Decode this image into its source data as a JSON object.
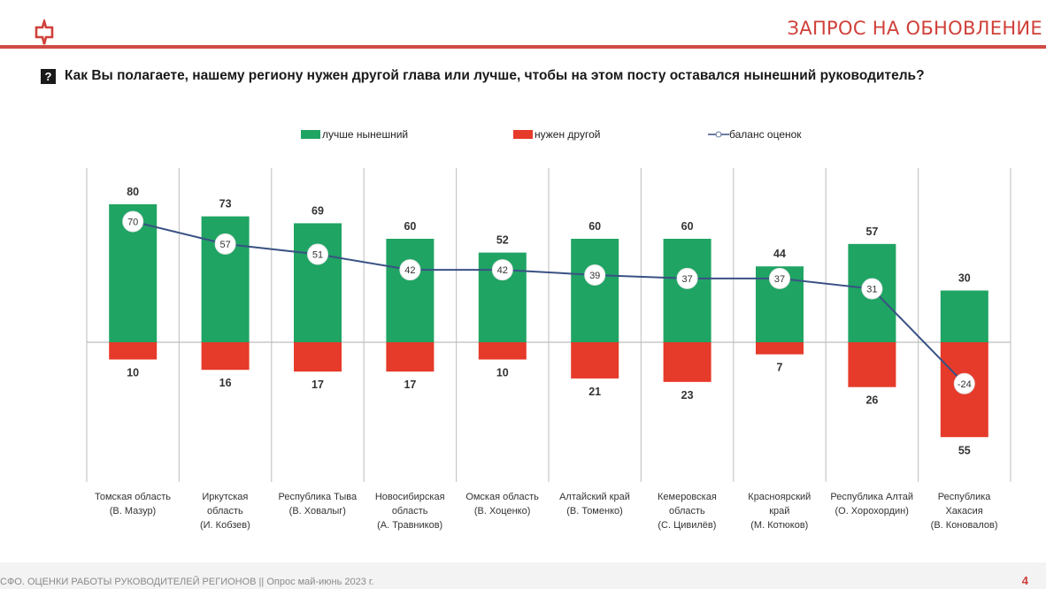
{
  "header": {
    "title": "ЗАПРОС НА ОБНОВЛЕНИЕ",
    "logo_icon": "speech-arrow-logo",
    "accent_color": "#d0403a"
  },
  "question": {
    "icon": "question-mark-icon",
    "icon_glyph": "?",
    "text": "Как Вы полагаете, нашему региону нужен другой глава или лучше, чтобы на этом посту оставался нынешний руководитель?"
  },
  "footer": {
    "text": "СФО. ОЦЕНКИ РАБОТЫ РУКОВОДИТЕЛЕЙ РЕГИОНОВ || Опрос май-июнь 2023 г.",
    "page_number": "4"
  },
  "chart_data": {
    "type": "bar",
    "title": "",
    "xlabel": "",
    "ylabel": "",
    "ylim": [
      -60,
      100
    ],
    "grid": "vertical separators between categories; horizontal zero line",
    "legend_position": "top-center",
    "legend": [
      {
        "name": "лучше нынешний",
        "color": "#1fa463",
        "kind": "bar"
      },
      {
        "name": "нужен другой",
        "color": "#e63a2a",
        "kind": "bar"
      },
      {
        "name": "баланс оценок",
        "color": "#3a5184",
        "kind": "line-marker"
      }
    ],
    "categories": [
      {
        "region": "Томская область",
        "leader": "(В. Мазур)"
      },
      {
        "region": "Иркутская область",
        "leader": "(И. Кобзев)"
      },
      {
        "region": "Республика Тыва",
        "leader": "(В. Ховалыг)"
      },
      {
        "region": "Новосибирская область",
        "leader": "(А. Травников)"
      },
      {
        "region": "Омская область",
        "leader": "(В. Хоценко)"
      },
      {
        "region": "Алтайский край",
        "leader": "(В. Томенко)"
      },
      {
        "region": "Кемеровская область",
        "leader": "(С. Цивилёв)"
      },
      {
        "region": "Красноярский край",
        "leader": "(М. Котюков)"
      },
      {
        "region": "Республика Алтай",
        "leader": "(О. Хорохордин)"
      },
      {
        "region": "Республика Хакасия",
        "leader": "(В. Коновалов)"
      }
    ],
    "category_label_lines": [
      [
        "Томская область",
        "(В. Мазур)"
      ],
      [
        "Иркутская",
        "область",
        "(И. Кобзев)"
      ],
      [
        "Республика Тыва",
        "(В. Ховалыг)"
      ],
      [
        "Новосибирская",
        "область",
        "(А. Травников)"
      ],
      [
        "Омская область",
        "(В. Хоценко)"
      ],
      [
        "Алтайский край",
        "(В. Томенко)"
      ],
      [
        "Кемеровская",
        "область",
        "(С. Цивилёв)"
      ],
      [
        "Красноярский",
        "край",
        "(М. Котюков)"
      ],
      [
        "Республика Алтай",
        "(О. Хорохордин)"
      ],
      [
        "Республика",
        "Хакасия",
        "(В. Коновалов)"
      ]
    ],
    "series": [
      {
        "name": "лучше нынешний",
        "values": [
          80,
          73,
          69,
          60,
          52,
          60,
          60,
          44,
          57,
          30
        ]
      },
      {
        "name": "нужен другой",
        "values": [
          10,
          16,
          17,
          17,
          10,
          21,
          23,
          7,
          26,
          55
        ]
      },
      {
        "name": "баланс оценок",
        "values": [
          70,
          57,
          51,
          42,
          42,
          39,
          37,
          37,
          31,
          -24
        ]
      }
    ]
  }
}
